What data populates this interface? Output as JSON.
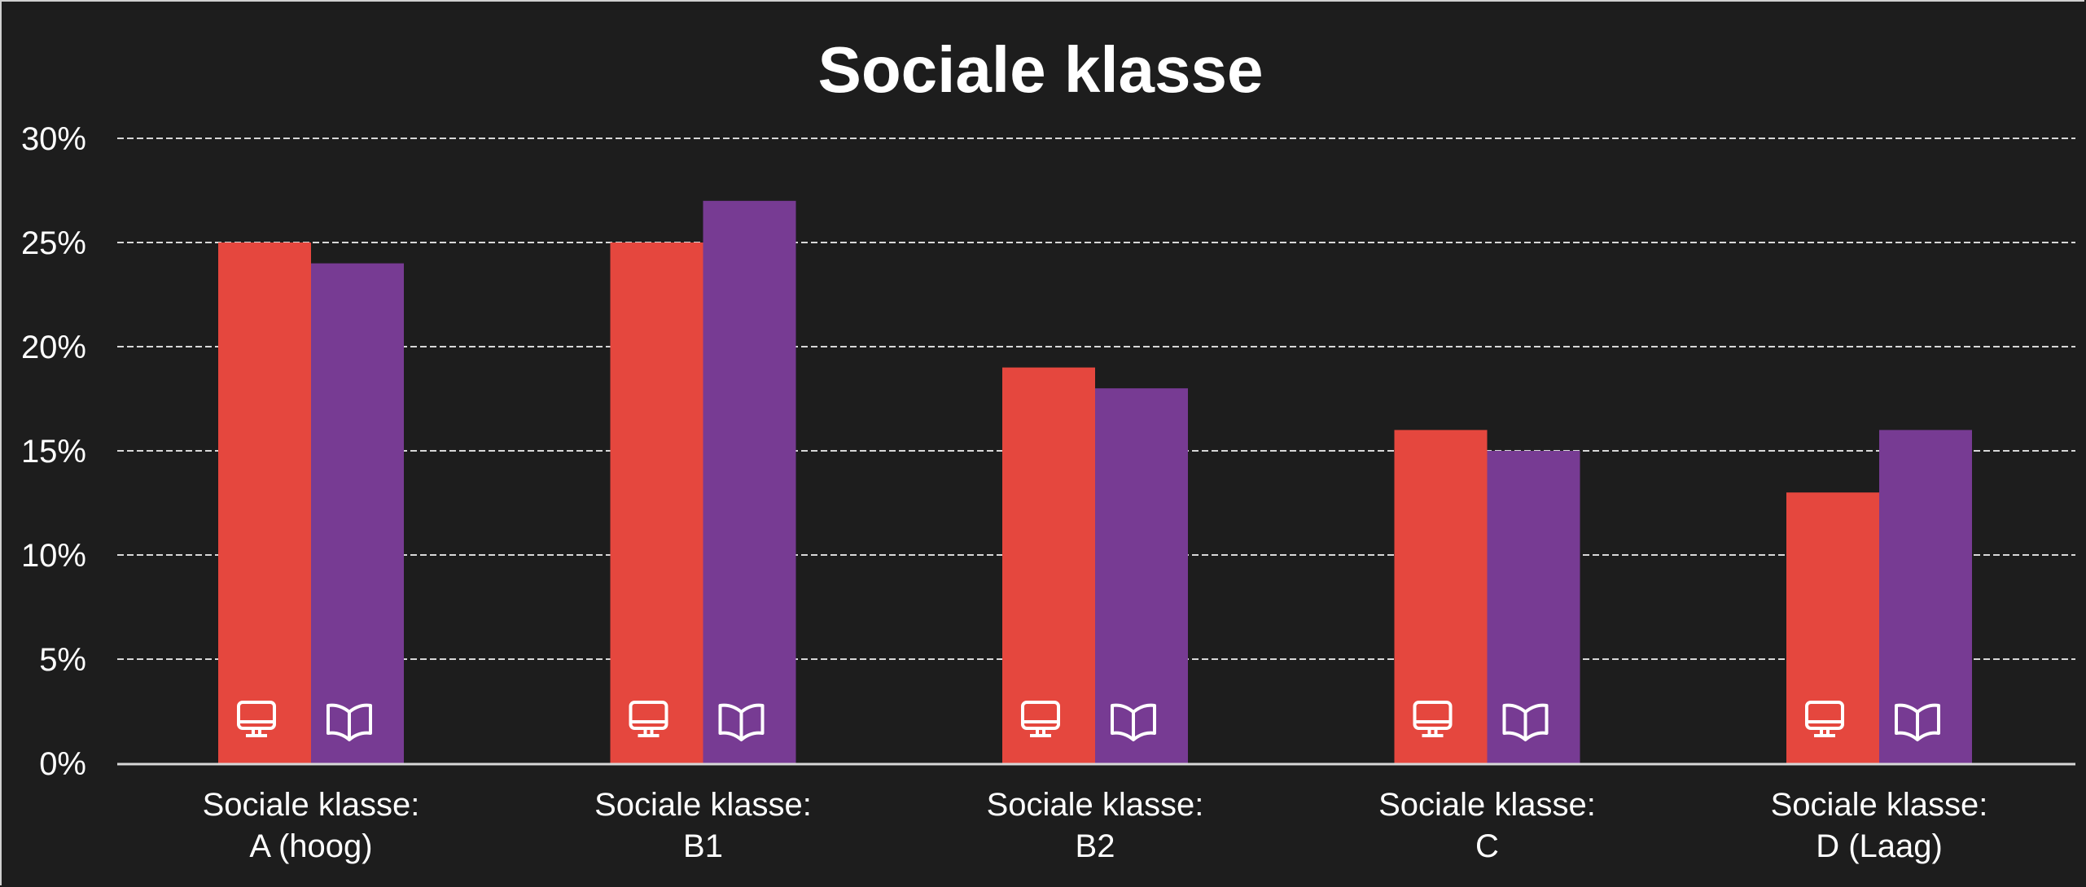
{
  "chart_data": {
    "type": "bar",
    "title": "Sociale klasse",
    "categories": [
      [
        "Sociale klasse:",
        "A (hoog)"
      ],
      [
        "Sociale klasse:",
        "B1"
      ],
      [
        "Sociale klasse:",
        "B2"
      ],
      [
        "Sociale klasse:",
        "C"
      ],
      [
        "Sociale klasse:",
        "D (Laag)"
      ]
    ],
    "series": [
      {
        "icon": "monitor-icon",
        "color": "#e5473e",
        "values": [
          25,
          25,
          19,
          16,
          13
        ]
      },
      {
        "icon": "open-book-icon",
        "color": "#773b93",
        "values": [
          24,
          27,
          18,
          15,
          16
        ]
      }
    ],
    "ylim": [
      0,
      30
    ],
    "yticks": [
      "0%",
      "5%",
      "10%",
      "15%",
      "20%",
      "25%",
      "30%"
    ],
    "ytick_values": [
      0,
      5,
      10,
      15,
      20,
      25,
      30
    ],
    "grid": true,
    "background": "#1d1d1d"
  }
}
